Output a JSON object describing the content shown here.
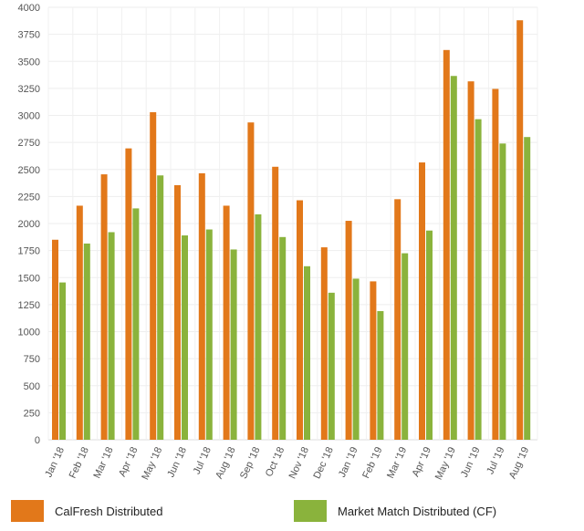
{
  "chart_data": {
    "type": "bar",
    "categories": [
      "Jan '18",
      "Feb '18",
      "Mar '18",
      "Apr '18",
      "May '18",
      "Jun '18",
      "Jul '18",
      "Aug '18",
      "Sep '18",
      "Oct '18",
      "Nov '18",
      "Dec '18",
      "Jan '19",
      "Feb '19",
      "Mar '19",
      "Apr '19",
      "May '19",
      "Jun '19",
      "Jul '19",
      "Aug '19"
    ],
    "series": [
      {
        "name": "CalFresh Distributed",
        "color": "#e2781a",
        "values": [
          1850,
          2165,
          2455,
          2695,
          3030,
          2355,
          2465,
          2165,
          2935,
          2525,
          2215,
          1780,
          2025,
          1465,
          2225,
          2565,
          3605,
          3315,
          3245,
          3880
        ]
      },
      {
        "name": "Market Match Distributed (CF)",
        "color": "#8ab33c",
        "values": [
          1455,
          1815,
          1920,
          2140,
          2445,
          1890,
          1945,
          1760,
          2085,
          1875,
          1605,
          1360,
          1490,
          1190,
          1725,
          1935,
          3365,
          2965,
          2740,
          2800
        ]
      }
    ],
    "yticks": [
      "0",
      "250",
      "500",
      "750",
      "1000",
      "1250",
      "1500",
      "1750",
      "2000",
      "2250",
      "2500",
      "2750",
      "3000",
      "3250",
      "3500",
      "3750",
      "4000"
    ],
    "ylim": [
      0,
      4000
    ],
    "grid": true,
    "legend_position": "bottom",
    "title": "",
    "xlabel": "",
    "ylabel": ""
  }
}
